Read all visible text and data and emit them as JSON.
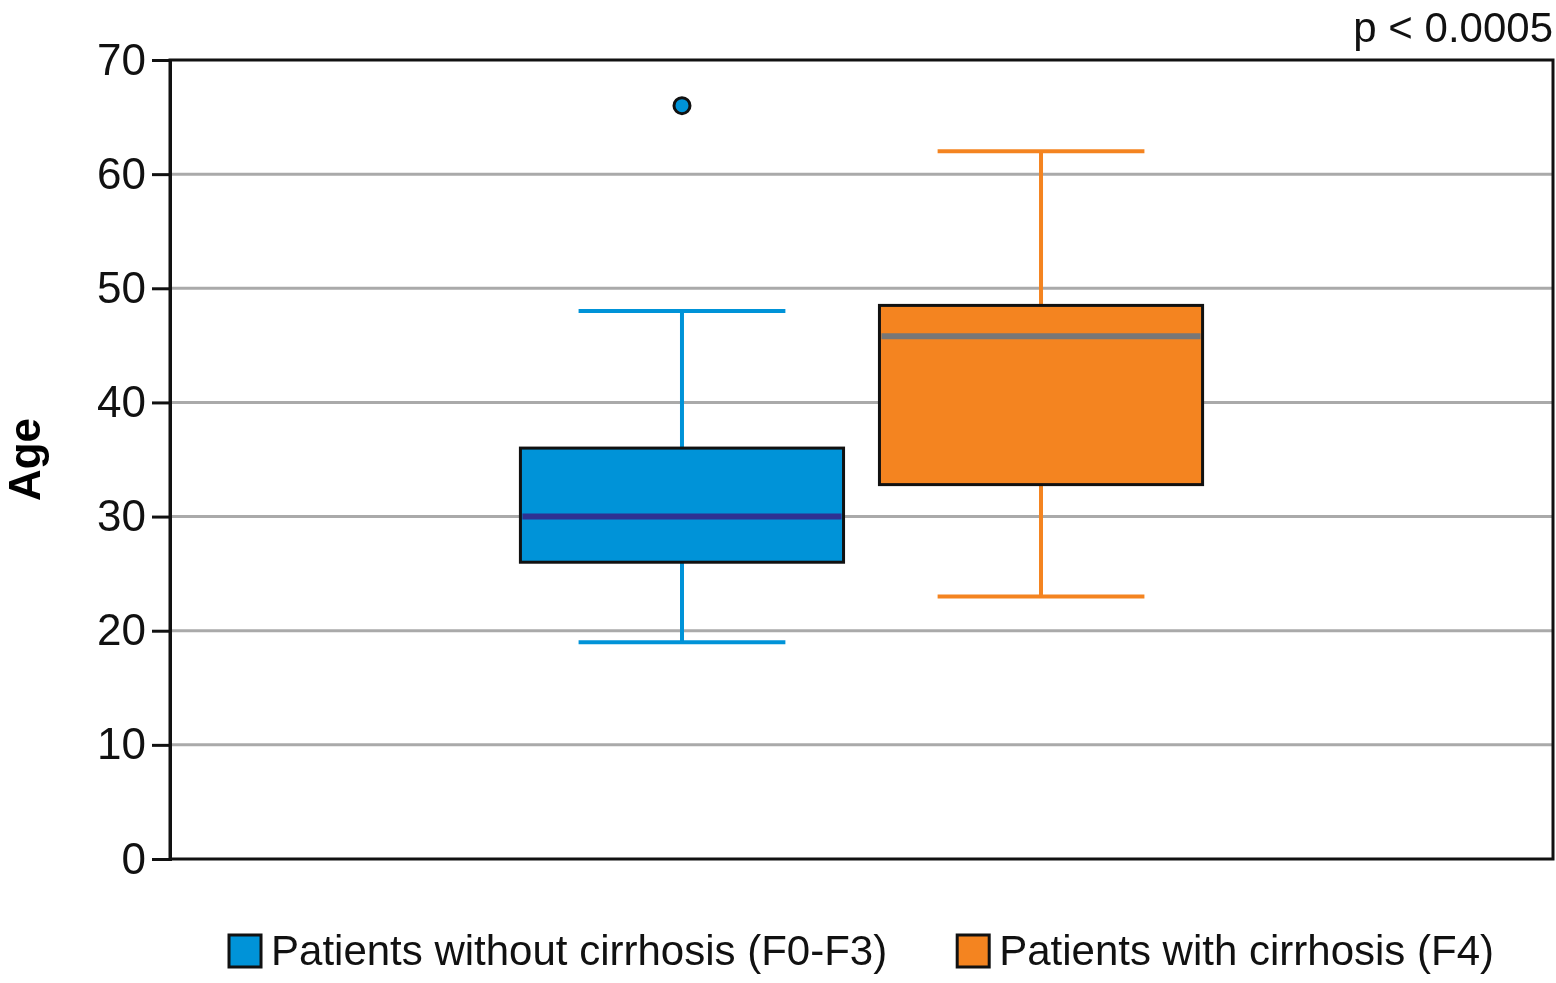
{
  "chart_data": {
    "type": "box",
    "ylabel": "Age",
    "annotations": [
      "p < 0.0005"
    ],
    "categories": [
      null
    ],
    "series": [
      {
        "name": "Patients without cirrhosis (F0-F3)",
        "color": "#0093d8",
        "boxes": [
          {
            "low": 19,
            "q1": 26,
            "median": 30,
            "q3": 36,
            "high": 48,
            "outliers": [
              66
            ]
          }
        ]
      },
      {
        "name": "Patients with cirrhosis (F4)",
        "color": "#f48420",
        "boxes": [
          {
            "low": 23,
            "q1": 32.8,
            "median": 45.8,
            "q3": 48.5,
            "high": 62
          }
        ]
      }
    ],
    "ylim": [
      0,
      70
    ],
    "yticks": [
      0,
      10,
      20,
      30,
      40,
      50,
      60,
      70
    ],
    "grid": "y",
    "legend": "bottom"
  }
}
